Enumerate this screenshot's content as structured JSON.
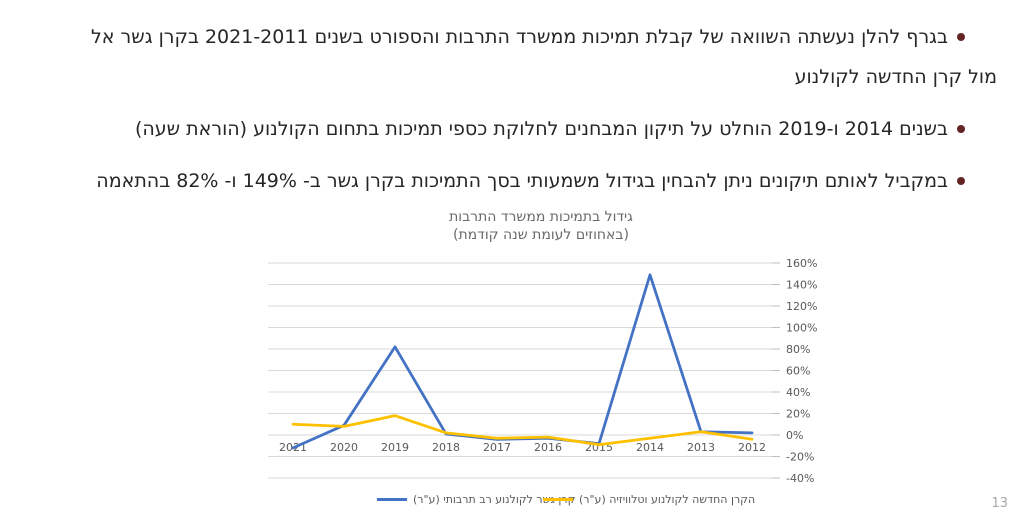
{
  "page": {
    "number": "13",
    "background": "#FFFFFF"
  },
  "bullets": {
    "dot_color": "#632423",
    "text_color": "#262626",
    "items": [
      {
        "lines": [
          "בגרף להלן נעשתה השוואה של קבלת תמיכות ממשרד התרבות והספורט בשנים 2021-2011 בקרן גשר אל",
          "מול קרן החדשה לקולנוע"
        ]
      },
      {
        "lines": [
          "בשנים 2014 ו-2019 הוחלט על תיקון המבחנים לחלוקת כספי תמיכות בתחום הקולנוע (הוראת שעה)"
        ]
      },
      {
        "lines": [
          "במקביל לאותם תיקונים ניתן להבחין בגידול משמעותי בסך התמיכות בקרן גשר ב- 149% ו- 82% בהתאמה"
        ]
      }
    ]
  },
  "chart_data": {
    "type": "line",
    "title": "גידול בתמיכות ממשרד התרבות",
    "subtitle": "(באחוזים לעומת שנה קודמת)",
    "x_axis_direction": "rtl (oldest year 2012 on the right)",
    "categories": [
      "2021",
      "2020",
      "2019",
      "2018",
      "2017",
      "2016",
      "2015",
      "2014",
      "2013",
      "2012"
    ],
    "series": [
      {
        "name": "קרן גשר לקולנוע רב תרבותי (ע\"ר)",
        "color": "#4472C4",
        "values": [
          -12,
          9,
          82,
          1,
          -4,
          -3,
          -8,
          149,
          3,
          2
        ]
      },
      {
        "name": "הקרן החדשה לקולנוע וטלוויזיה (ע\"ר)",
        "color": "#FFC000",
        "values": [
          10,
          8,
          18,
          2,
          -3,
          -2,
          -9,
          -3,
          3,
          -4
        ]
      }
    ],
    "ylabel": "",
    "xlabel": "",
    "ylim": [
      -40,
      160
    ],
    "ytick_step": 20,
    "ytick_labels": [
      "160%",
      "140%",
      "120%",
      "100%",
      "80%",
      "60%",
      "40%",
      "20%",
      "0%",
      "-20%",
      "-40%"
    ],
    "grid": "horizontal",
    "legend_position": "bottom",
    "gridline_color": "#D9D9D9",
    "tick_color": "#BFBFBF",
    "axis_label_color": "#595959",
    "title_color": "#696969"
  }
}
